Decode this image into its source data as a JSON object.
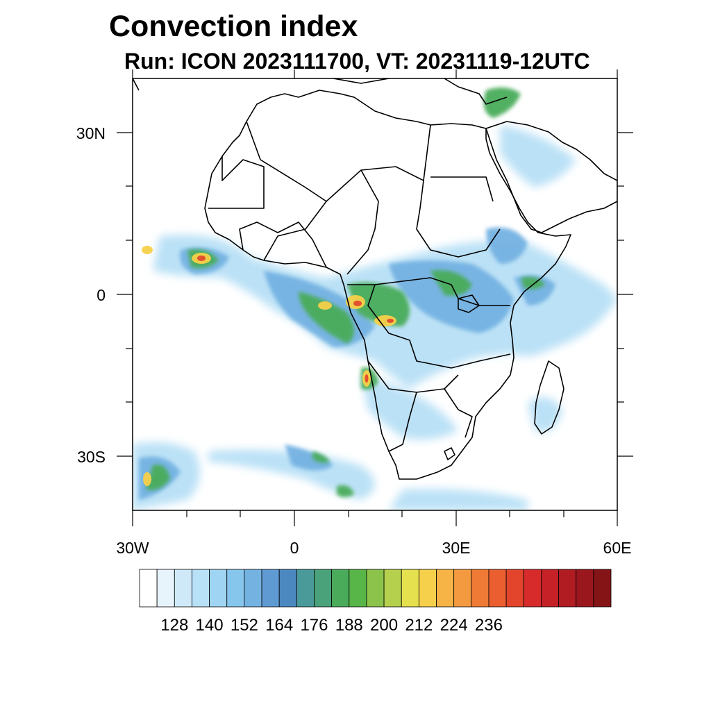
{
  "header": {
    "title": "Convection index",
    "subtitle": "Run: ICON 2023111700,  VT: 20231119-12UTC"
  },
  "map": {
    "lat_labels": [
      "30N",
      "0",
      "30S"
    ],
    "lon_labels": [
      "30W",
      "0",
      "30E",
      "60E"
    ],
    "extent": {
      "lon": [
        -30,
        60
      ],
      "lat": [
        -40,
        40
      ]
    }
  },
  "colorbar": {
    "labels": [
      "128",
      "140",
      "152",
      "164",
      "176",
      "188",
      "200",
      "212",
      "224",
      "236"
    ],
    "colors": [
      "#ffffff",
      "#e8f4fc",
      "#cfe9f8",
      "#b8e0f6",
      "#9fd5f3",
      "#86c6ec",
      "#74b2e2",
      "#5f9bd2",
      "#4b88c0",
      "#4b9a9a",
      "#4aa27a",
      "#4aac5a",
      "#58b548",
      "#8cc34a",
      "#b5d04c",
      "#e4e04e",
      "#f6d04a",
      "#f6b447",
      "#f39a40",
      "#ef7a35",
      "#ea5e30",
      "#e2442c",
      "#d72b2b",
      "#c52126",
      "#b01c22",
      "#9a171d",
      "#851417"
    ]
  }
}
